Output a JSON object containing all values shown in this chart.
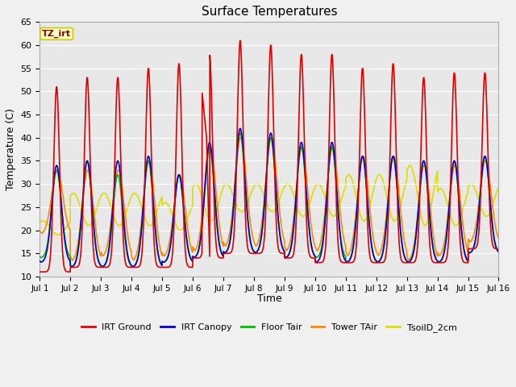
{
  "title": "Surface Temperatures",
  "ylabel": "Temperature (C)",
  "xlabel": "Time",
  "ylim": [
    10,
    65
  ],
  "yticks": [
    10,
    15,
    20,
    25,
    30,
    35,
    40,
    45,
    50,
    55,
    60,
    65
  ],
  "xtick_labels": [
    "Jul 1",
    "Jul 2",
    "Jul 3",
    "Jul 4",
    "Jul 5",
    "Jul 6",
    "Jul 7",
    "Jul 8",
    "Jul 9",
    "Jul 10",
    "Jul 11",
    "Jul 12",
    "Jul 13",
    "Jul 14",
    "Jul 15",
    "Jul 16"
  ],
  "annotation_text": "TZ_irt",
  "annotation_bg": "#ffffcc",
  "annotation_border": "#cccc00",
  "fig_bg": "#f0f0f0",
  "plot_bg": "#e8e8e8",
  "series": {
    "IRT Ground": {
      "color": "#dd0000",
      "lw": 1.2
    },
    "IRT Canopy": {
      "color": "#0000cc",
      "lw": 1.2
    },
    "Floor Tair": {
      "color": "#00bb00",
      "lw": 1.2
    },
    "Tower TAir": {
      "color": "#ff8800",
      "lw": 1.2
    },
    "TsoilD_2cm": {
      "color": "#dddd00",
      "lw": 1.2
    }
  },
  "days": 15,
  "pts_per_day": 144,
  "irt_ground_peaks": [
    51,
    53,
    53,
    55,
    56,
    58,
    61,
    60,
    58,
    58,
    55,
    56,
    53,
    54,
    54
  ],
  "irt_ground_mins": [
    11,
    12,
    12,
    12,
    12,
    14,
    15,
    15,
    14,
    13,
    13,
    13,
    13,
    13,
    16
  ],
  "irt_canopy_peaks": [
    34,
    35,
    35,
    36,
    32,
    39,
    42,
    41,
    39,
    39,
    36,
    36,
    35,
    35,
    36
  ],
  "irt_canopy_mins": [
    13,
    12,
    12,
    12,
    13,
    14,
    15,
    15,
    14,
    13,
    13,
    13,
    13,
    13,
    15
  ],
  "floor_tair_peaks": [
    33,
    35,
    32,
    35,
    32,
    38,
    41,
    40,
    38,
    38,
    36,
    36,
    35,
    35,
    36
  ],
  "floor_tair_mins": [
    14,
    12,
    12,
    12,
    13,
    14,
    15,
    15,
    14,
    14,
    13,
    13,
    13,
    13,
    15
  ],
  "tower_tair_peaks": [
    33,
    33,
    33,
    35,
    32,
    38,
    40,
    40,
    38,
    38,
    36,
    36,
    34,
    34,
    35
  ],
  "tower_tair_mins": [
    19,
    13,
    14,
    13,
    14,
    15,
    16,
    16,
    15,
    15,
    14,
    14,
    13,
    14,
    17
  ],
  "tsoild_peaks": [
    22,
    28,
    28,
    28,
    26,
    30,
    30,
    30,
    30,
    30,
    32,
    32,
    34,
    29,
    30
  ],
  "tsoild_mins": [
    19,
    21,
    21,
    21,
    20,
    22,
    24,
    24,
    23,
    23,
    22,
    22,
    21,
    21,
    23
  ]
}
